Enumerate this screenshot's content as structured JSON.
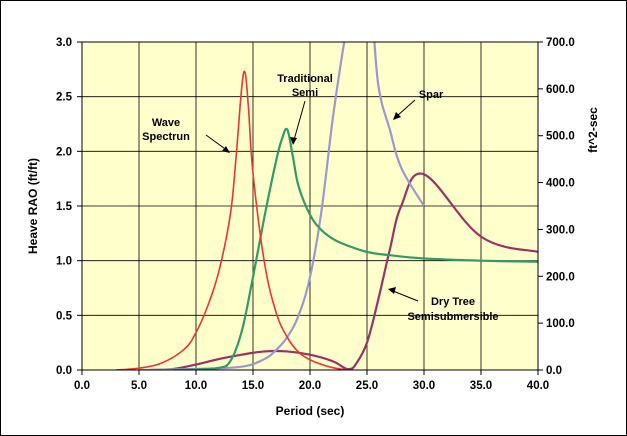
{
  "chart_data": {
    "type": "line",
    "xlabel": "Period (sec)",
    "ylabel": "Heave RAO (ft/ft)",
    "y2label": "ft^2-sec",
    "xlim": [
      0,
      40
    ],
    "ylim": [
      0,
      3.0
    ],
    "y2lim": [
      0,
      700
    ],
    "x_ticks": [
      "0.0",
      "5.0",
      "10.0",
      "15.0",
      "20.0",
      "25.0",
      "30.0",
      "35.0",
      "40.0"
    ],
    "y_ticks": [
      "0.0",
      "0.5",
      "1.0",
      "1.5",
      "2.0",
      "2.5",
      "3.0"
    ],
    "y2_ticks": [
      "0.0",
      "100.0",
      "200.0",
      "300.0",
      "400.0",
      "500.0",
      "600.0",
      "700.0"
    ],
    "grid": true,
    "plot_background": "#FFFFCC",
    "series": [
      {
        "name": "Wave Spectrun",
        "axis": "y2",
        "color": "#EE3333",
        "x": [
          3,
          5,
          7,
          9,
          10,
          11,
          12,
          13,
          13.5,
          14,
          14.3,
          14.6,
          15,
          16,
          17,
          18,
          19,
          20,
          21,
          22,
          23,
          23.5
        ],
        "y": [
          0,
          4,
          15,
          45,
          80,
          135,
          210,
          330,
          450,
          600,
          635,
          560,
          420,
          230,
          125,
          70,
          38,
          22,
          12,
          5,
          1,
          0
        ]
      },
      {
        "name": "Traditional Semi",
        "axis": "y",
        "color": "#339966",
        "x": [
          8,
          10,
          12,
          13,
          14,
          15,
          16,
          17,
          17.5,
          18,
          18.5,
          19,
          20,
          21,
          22,
          23,
          25,
          27,
          30,
          35,
          40
        ],
        "y": [
          0,
          0.005,
          0.02,
          0.08,
          0.35,
          0.85,
          1.4,
          1.9,
          2.1,
          2.2,
          1.95,
          1.68,
          1.42,
          1.28,
          1.2,
          1.15,
          1.08,
          1.05,
          1.02,
          1.0,
          0.99
        ]
      },
      {
        "name": "Spar",
        "axis": "y",
        "color": "#9999CC",
        "x": [
          5,
          10,
          14,
          16,
          17,
          18,
          19,
          20,
          21,
          22,
          23,
          23.7,
          25.2,
          26,
          27,
          28,
          30
        ],
        "y": [
          0,
          0.01,
          0.03,
          0.1,
          0.18,
          0.3,
          0.5,
          0.85,
          1.45,
          2.3,
          3.0,
          3.4,
          3.4,
          2.6,
          2.2,
          1.85,
          1.5
        ]
      },
      {
        "name": "Dry Tree Semisubmersible",
        "axis": "y",
        "color": "#993366",
        "x": [
          6,
          8,
          10,
          12,
          14,
          16,
          18,
          20,
          22,
          23,
          23.5,
          24,
          25,
          26,
          27,
          28,
          30,
          35,
          40
        ],
        "y": [
          0,
          0.01,
          0.05,
          0.1,
          0.14,
          0.17,
          0.17,
          0.14,
          0.08,
          0.02,
          0.01,
          0.05,
          0.25,
          0.65,
          1.1,
          1.5,
          1.79,
          1.22,
          1.08
        ]
      }
    ],
    "annotations": [
      {
        "lines": [
          "Wave",
          "Spectrun"
        ],
        "target": "Wave Spectrun"
      },
      {
        "lines": [
          "Traditional",
          "Semi"
        ],
        "target": "Traditional Semi"
      },
      {
        "lines": [
          "Spar"
        ],
        "target": "Spar"
      },
      {
        "lines": [
          "Dry Tree",
          "Semisubmersible"
        ],
        "target": "Dry Tree Semisubmersible"
      }
    ]
  }
}
